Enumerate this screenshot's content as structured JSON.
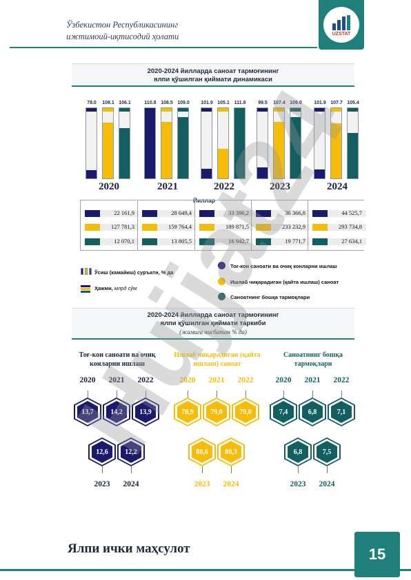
{
  "header": {
    "title_line1": "Ўзбекистон Республикасининг",
    "title_line2": "ижтимоий-иқтисодий ҳолати",
    "logo_text": "UZSTAT"
  },
  "colors": {
    "teal": "#1f7f7a",
    "navy": "#1b1b6e",
    "gold": "#f5bd0a",
    "dark_teal": "#125e60"
  },
  "section1": {
    "title_line1": "2020-2024 йилларда саноат тармоғининг",
    "title_line2": "ялпи қўшилган қиймати динамикаси",
    "axis_label": "Йиллар"
  },
  "chart_data": {
    "type": "bar",
    "title": "2020-2024 йилларда саноат тармоғининг ялпи қўшилган қиймати динамикаси",
    "categories": [
      "2020",
      "2021",
      "2022",
      "2023",
      "2024"
    ],
    "xlabel": "Йиллар",
    "series": [
      {
        "name": "Тоғ-кон саноати ва очиқ конларни ишлаш",
        "growth": [
          78.0,
          110.8,
          101.9,
          99.5,
          101.9
        ],
        "volume": [
          "22 161,9",
          "28 649,4",
          "33 396,2",
          "36 366,8",
          "44 525,7"
        ],
        "fill": [
          0.12,
          0.95,
          0.14,
          0.16,
          0.13
        ]
      },
      {
        "name": "Ишлаб чиқарадиган (қайта ишлаш) саноат",
        "growth": [
          108.1,
          108.5,
          105.1,
          107.4,
          107.7
        ],
        "volume": [
          "127 781,3",
          "159 764,4",
          "189 871,5",
          "233 232,9",
          "293 734,8"
        ],
        "fill": [
          0.79,
          0.8,
          0.42,
          0.8,
          0.78
        ]
      },
      {
        "name": "Саноатнинг бошқа тармоқлари",
        "growth": [
          106.1,
          109.0,
          111.8,
          109.0,
          105.4
        ],
        "volume": [
          "12 070,1",
          "13 805,5",
          "16 942,7",
          "19 771,7",
          "27 634,1"
        ],
        "fill": [
          0.72,
          0.87,
          0.95,
          0.87,
          0.65
        ]
      }
    ]
  },
  "legend": {
    "growth_label": "Ўсиш (камайиш) суръати, % да",
    "volume_label": "Ҳажми, ",
    "volume_unit": "млрд сўм",
    "item1": "Тоғ-кон саноати ва очиқ конларни ишлаш",
    "item2": "Ишлаб чиқарадиган (қайта ишлаш) саноат",
    "item3": "Саноатнинг бошқа тармоқлари"
  },
  "section2": {
    "title_line1": "2020-2024 йилларда саноат тармоғининг",
    "title_line2": "ялпи қўшилган қиймати таркиби",
    "subtitle": "(жамига нисбатан % да)",
    "groups": [
      {
        "title": "Тоғ-кон саноати ва очиқ конларни ишлаш",
        "values": [
          "13,7",
          "14,2",
          "13,9",
          "12,6",
          "12,2"
        ]
      },
      {
        "title": "Ишлаб чиқарадиган (қайта ишлаш) саноат",
        "values": [
          "78,9",
          "79,0",
          "79,0",
          "80,6",
          "80,3"
        ]
      },
      {
        "title": "Саноатнинг бошқа тармоқлари",
        "values": [
          "7,4",
          "6,8",
          "7,1",
          "6,8",
          "7,5"
        ]
      }
    ],
    "years": [
      "2020",
      "2021",
      "2022",
      "2023",
      "2024"
    ]
  },
  "footer": {
    "title": "Ялпи ички маҳсулот",
    "page_number": "15"
  },
  "watermark": "Hujjat24"
}
